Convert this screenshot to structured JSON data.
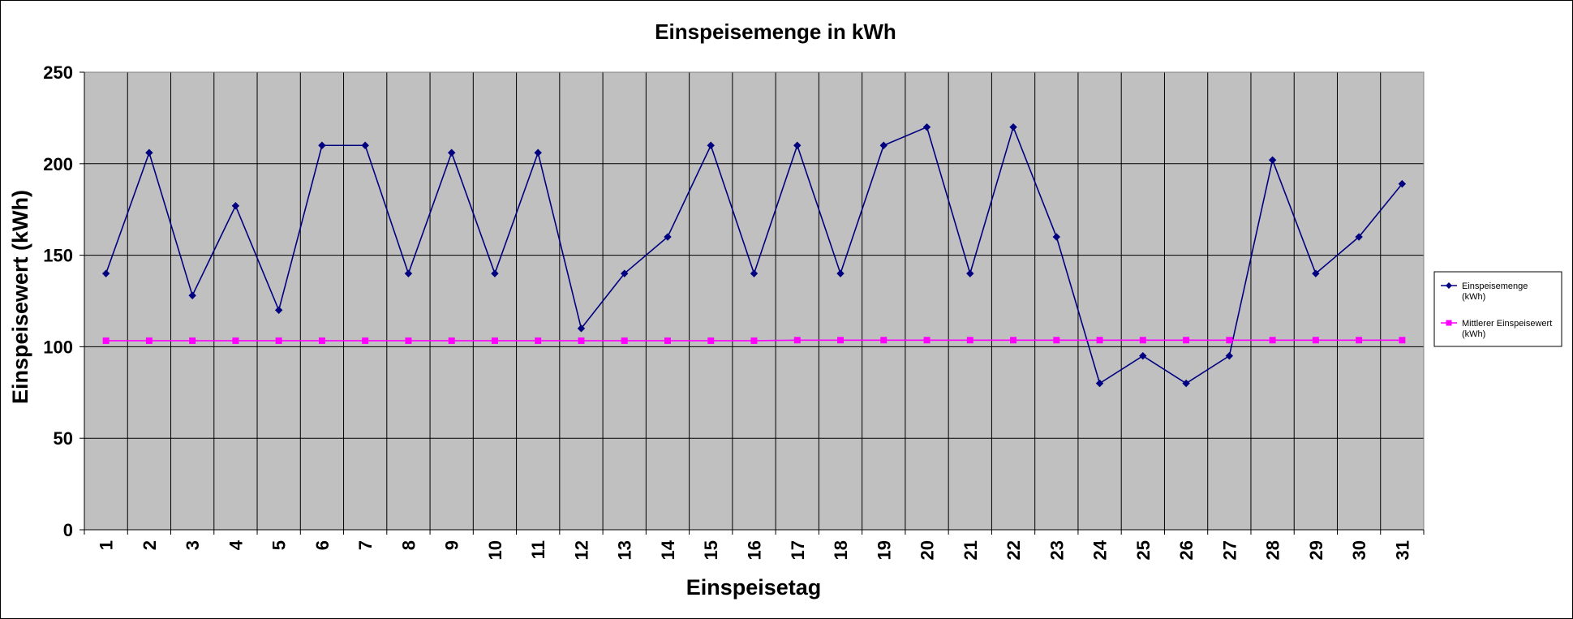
{
  "chart_data": {
    "type": "line",
    "title": "Einspeisemenge in kWh",
    "xlabel": "Einspeisetag",
    "ylabel": "Einspeisewert  (kWh)",
    "categories": [
      "1",
      "2",
      "3",
      "4",
      "5",
      "6",
      "7",
      "8",
      "9",
      "10",
      "11",
      "12",
      "13",
      "14",
      "15",
      "16",
      "17",
      "18",
      "19",
      "20",
      "21",
      "22",
      "23",
      "24",
      "25",
      "26",
      "27",
      "28",
      "29",
      "30",
      "31"
    ],
    "ylim": [
      0,
      250
    ],
    "yticks": [
      0,
      50,
      100,
      150,
      200,
      250
    ],
    "grid": true,
    "legend_position": "right",
    "plot_background": "#c0c0c0",
    "series": [
      {
        "name": "Einspeisemenge",
        "name_unit": "(kWh)",
        "color": "#000080",
        "marker": "diamond",
        "values": [
          140,
          206,
          128,
          177,
          120,
          210,
          210,
          140,
          206,
          140,
          206,
          110,
          140,
          160,
          210,
          140,
          210,
          140,
          210,
          220,
          140,
          220,
          160,
          80,
          95,
          80,
          95,
          202,
          140,
          160,
          189
        ]
      },
      {
        "name": "Mittlerer Einspeisewert",
        "name_unit": "(kWh)",
        "color": "#ff00ff",
        "marker": "square",
        "values": [
          103.3,
          103.3,
          103.3,
          103.3,
          103.3,
          103.3,
          103.3,
          103.3,
          103.3,
          103.3,
          103.3,
          103.3,
          103.3,
          103.3,
          103.3,
          103.3,
          103.6,
          103.6,
          103.6,
          103.6,
          103.6,
          103.6,
          103.6,
          103.6,
          103.6,
          103.6,
          103.6,
          103.6,
          103.6,
          103.6,
          103.6
        ]
      }
    ]
  }
}
